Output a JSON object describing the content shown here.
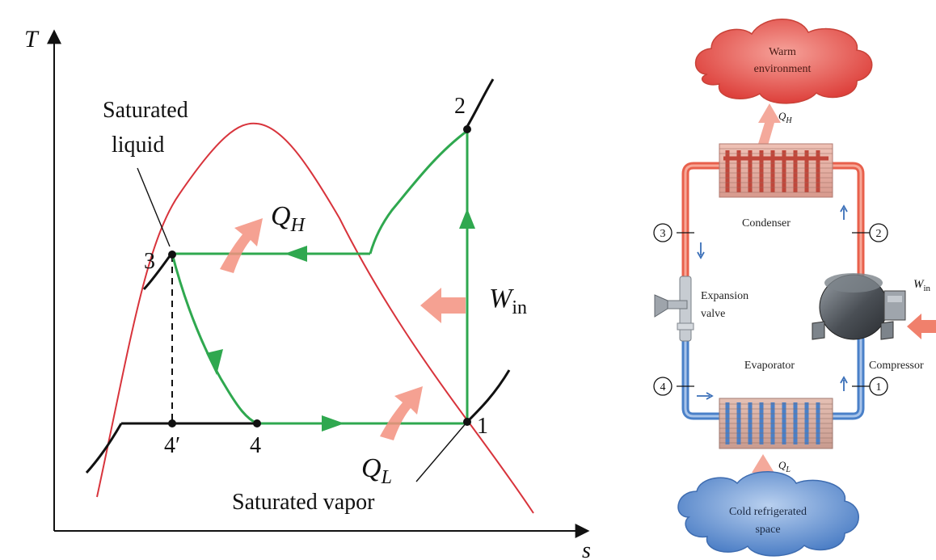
{
  "ts_diagram": {
    "axis_y_label": "T",
    "axis_x_label": "s",
    "sat_liquid_label_line1": "Saturated",
    "sat_liquid_label_line2": "liquid",
    "sat_vapor_label": "Saturated vapor",
    "state_1": "1",
    "state_2": "2",
    "state_3": "3",
    "state_4": "4",
    "state_4prime": "4′",
    "qh_main": "Q",
    "qh_sub": "H",
    "ql_main": "Q",
    "ql_sub": "L",
    "win_main": "W",
    "win_sub": "in",
    "colors": {
      "dome": "#d8343c",
      "cycle": "#2fa84f",
      "isobar": "#1a1a1a",
      "heat_arrow": "#f08070"
    }
  },
  "system": {
    "warm_line1": "Warm",
    "warm_line2": "environment",
    "cold_line1": "Cold refrigerated",
    "cold_line2": "space",
    "qh_main": "Q",
    "qh_sub": "H",
    "ql_main": "Q",
    "ql_sub": "L",
    "win_main": "W",
    "win_sub": "in",
    "condenser": "Condenser",
    "evaporator": "Evaporator",
    "expansion_line1": "Expansion",
    "expansion_line2": "valve",
    "compressor": "Compressor",
    "state_1": "1",
    "state_2": "2",
    "state_3": "3",
    "state_4": "4",
    "colors": {
      "hot": "#e8604c",
      "cold": "#4a80c8"
    }
  }
}
